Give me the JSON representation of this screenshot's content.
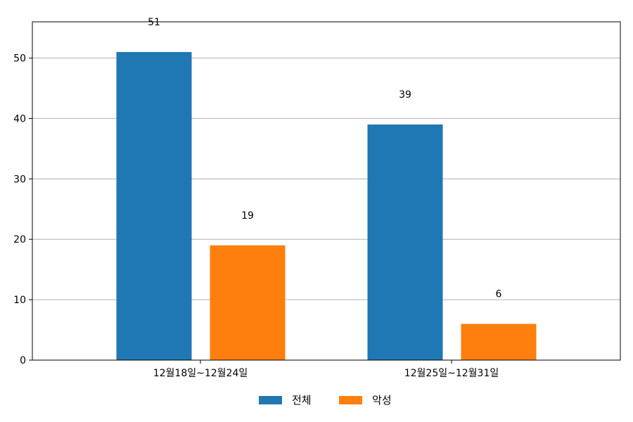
{
  "chart_data": {
    "type": "bar",
    "title": "",
    "xlabel": "",
    "ylabel": "",
    "categories": [
      "12월18일~12월24일",
      "12월25일~12월31일"
    ],
    "series": [
      {
        "name": "전체",
        "values": [
          51,
          39
        ],
        "color": "#1f77b4"
      },
      {
        "name": "악성",
        "values": [
          19,
          6
        ],
        "color": "#ff7f0e"
      }
    ],
    "ylim": [
      0,
      56
    ],
    "yticks": [
      0,
      10,
      20,
      30,
      40,
      50
    ],
    "grid": "y",
    "legend_position": "bottom-center"
  }
}
